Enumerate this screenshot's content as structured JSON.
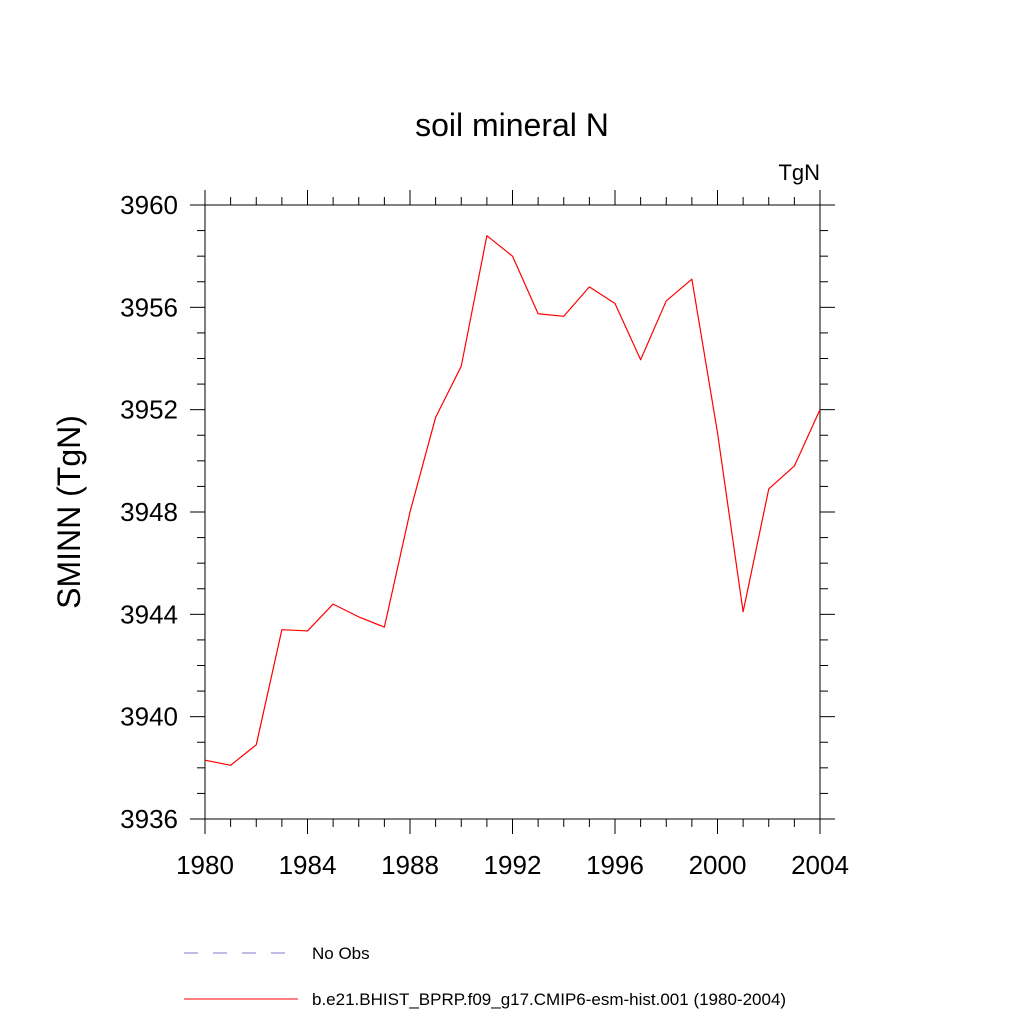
{
  "chart_data": {
    "type": "line",
    "title": "soil mineral N",
    "units": "TgN",
    "ylabel": "SMINN  (TgN)",
    "xlabel": "",
    "xlim": [
      1980,
      2004
    ],
    "ylim": [
      3936,
      3960
    ],
    "xticks": [
      1980,
      1984,
      1988,
      1992,
      1996,
      2000,
      2004
    ],
    "yticks": [
      3936,
      3940,
      3944,
      3948,
      3952,
      3956,
      3960
    ],
    "xtick_labels": [
      "1980",
      "1984",
      "1988",
      "1992",
      "1996",
      "2000",
      "2004"
    ],
    "ytick_labels": [
      "3936",
      "3940",
      "3944",
      "3948",
      "3952",
      "3956",
      "3960"
    ],
    "grid": false,
    "legend_position": "bottom",
    "series": [
      {
        "name": "b.e21.BHIST_BPRP.f09_g17.CMIP6-esm-hist.001 (1980-2004)",
        "color": "#ff0000",
        "style": "solid",
        "x": [
          1980,
          1981,
          1982,
          1983,
          1984,
          1985,
          1986,
          1987,
          1988,
          1989,
          1990,
          1991,
          1992,
          1993,
          1994,
          1995,
          1996,
          1997,
          1998,
          1999,
          2000,
          2001,
          2002,
          2003,
          2004
        ],
        "y": [
          3938.3,
          3938.1,
          3938.9,
          3943.4,
          3943.35,
          3944.4,
          3943.9,
          3943.5,
          3948.0,
          3951.7,
          3953.7,
          3958.8,
          3958.0,
          3955.75,
          3955.65,
          3956.8,
          3956.15,
          3953.95,
          3956.25,
          3957.1,
          3951.1,
          3944.1,
          3948.9,
          3949.8,
          3952.0
        ]
      }
    ],
    "legend": [
      {
        "label": "No Obs",
        "color": "#7b7bd0",
        "style": "dashed"
      },
      {
        "label": "b.e21.BHIST_BPRP.f09_g17.CMIP6-esm-hist.001 (1980-2004)",
        "color": "#ff0000",
        "style": "solid"
      }
    ]
  }
}
